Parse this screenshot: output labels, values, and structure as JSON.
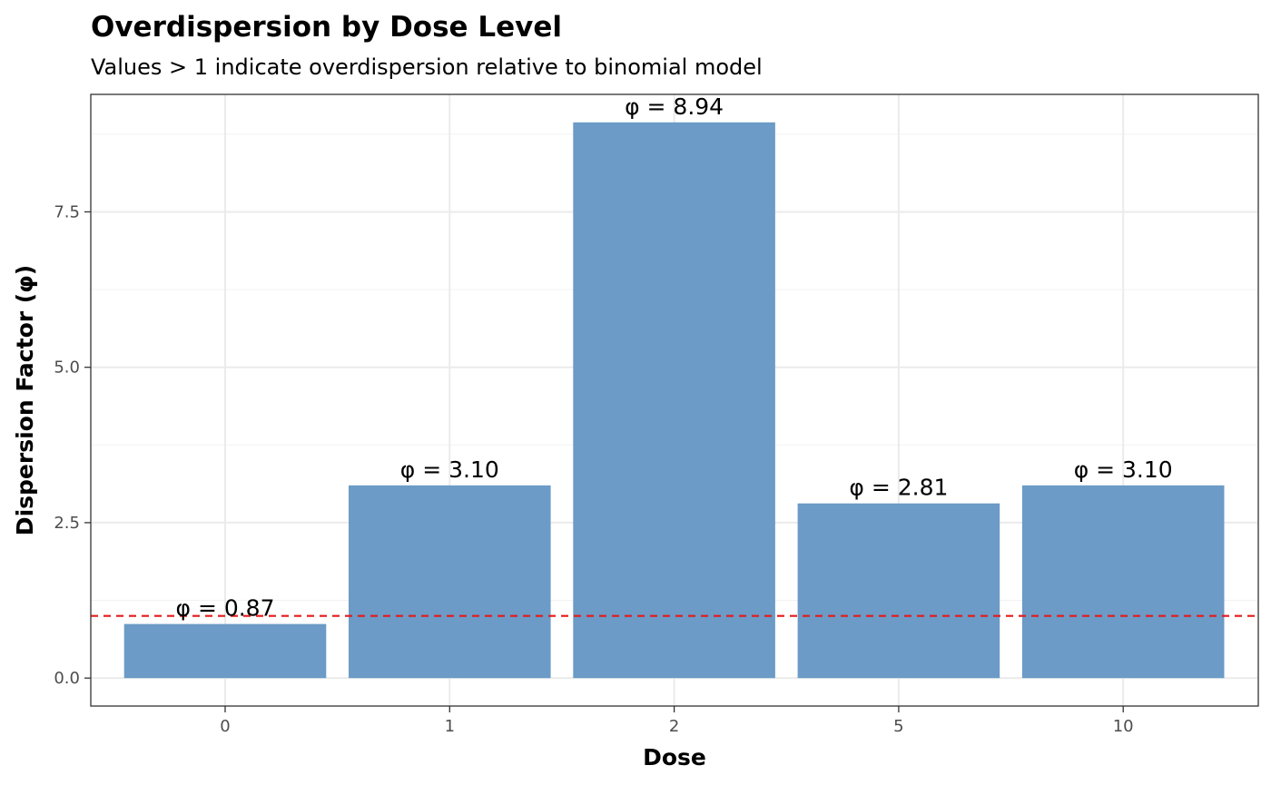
{
  "chart_data": {
    "type": "bar",
    "title": "Overdispersion by Dose Level",
    "subtitle": "Values > 1 indicate overdispersion relative to binomial model",
    "xlabel": "Dose",
    "ylabel": "Dispersion Factor (φ)",
    "categories": [
      "0",
      "1",
      "2",
      "5",
      "10"
    ],
    "values": [
      0.87,
      3.1,
      8.94,
      2.81,
      3.1
    ],
    "data_labels": [
      "φ = 0.87",
      "φ = 3.10",
      "φ = 8.94",
      "φ = 2.81",
      "φ = 3.10"
    ],
    "yticks": [
      0.0,
      2.5,
      5.0,
      7.5
    ],
    "ytick_labels": [
      "0.0",
      "2.5",
      "5.0",
      "7.5"
    ],
    "ylim": [
      -0.45,
      9.39
    ],
    "reference_line": {
      "y": 1,
      "style": "dashed",
      "color": "#e41a1c"
    },
    "bar_color": "#6b9bc6",
    "grid": true,
    "legend": "none"
  }
}
